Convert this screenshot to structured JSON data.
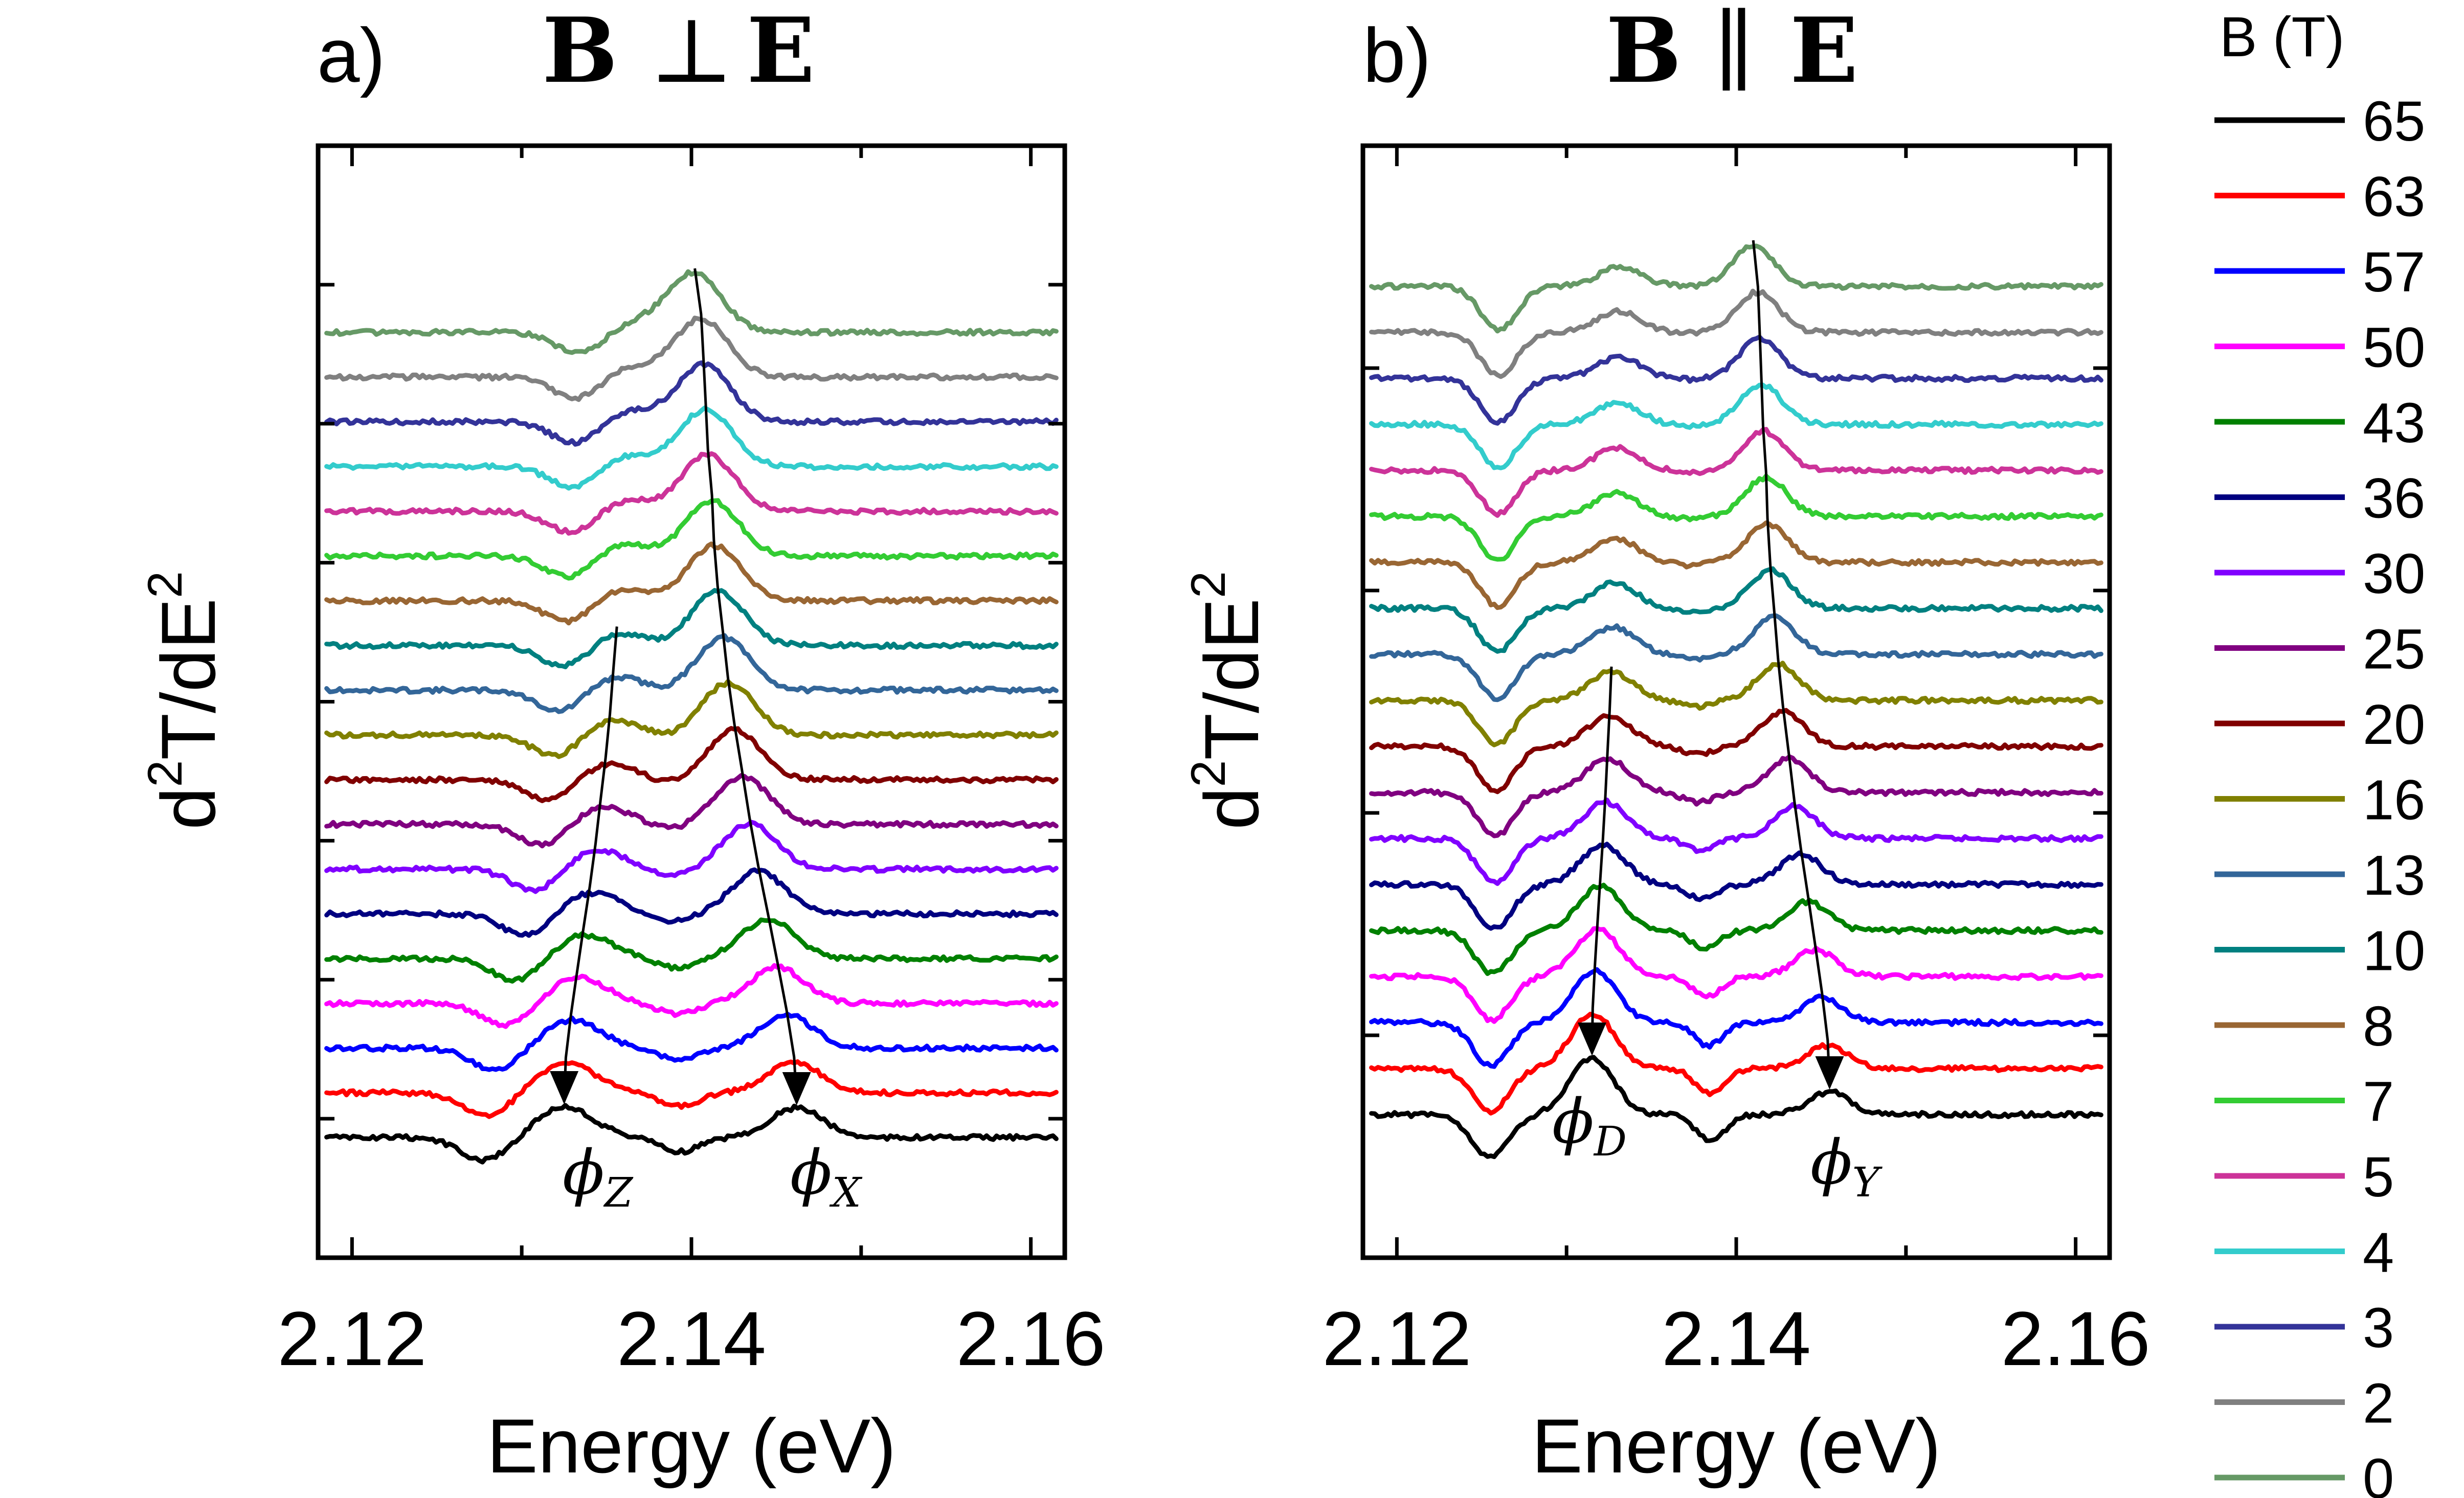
{
  "chart_data": {
    "type": "line",
    "ylabel_base": "d",
    "ylabel_sup1": "2",
    "ylabel_mid": "T/dE",
    "ylabel_sup2": "2",
    "xlabel": "Energy (eV)",
    "xlim": [
      2.118,
      2.162
    ],
    "xticks": [
      "2.12",
      "2.14",
      "2.16"
    ],
    "xtick_values": [
      2.12,
      2.14,
      2.16
    ],
    "legend": {
      "title": "B (T)",
      "fields_T": [
        65,
        63,
        57,
        50,
        43,
        36,
        30,
        25,
        20,
        16,
        13,
        10,
        8,
        7,
        5,
        4,
        3,
        2,
        0
      ],
      "labels": [
        "65",
        "63",
        "57",
        "50",
        "43",
        "36",
        "30",
        "25",
        "20",
        "16",
        "13",
        "10",
        "8",
        "7",
        "5",
        "4",
        "3",
        "2",
        "0"
      ],
      "colors": [
        "#000000",
        "#ff0000",
        "#0000ff",
        "#ff00ff",
        "#008000",
        "#000080",
        "#8000ff",
        "#800080",
        "#800000",
        "#808000",
        "#336699",
        "#008080",
        "#996633",
        "#33cc33",
        "#cc3399",
        "#33cccc",
        "#333399",
        "#808080",
        "#669966"
      ]
    },
    "panels": [
      {
        "id": "a",
        "label": "a)",
        "title_left": "B",
        "title_symbol": "⊥",
        "title_right": "E",
        "features": [
          {
            "symbol": "ϕ",
            "subscript": "Z",
            "energy_eV_at_0T": 2.1365,
            "energy_eV_at_65T": 2.1325,
            "sign": -1
          },
          {
            "symbol": "ϕ",
            "subscript": "X",
            "energy_eV_at_0T": 2.1402,
            "energy_eV_at_65T": 2.1462,
            "sign": 1
          }
        ],
        "background_dip": {
          "energy_eV_at_0T": 2.1335,
          "energy_eV_at_65T": 2.1278
        },
        "zero_field_peak_eV": 2.14
      },
      {
        "id": "b",
        "label": "b)",
        "title_left": "B",
        "title_symbol": "∥",
        "title_right": "E",
        "features": [
          {
            "symbol": "ϕ",
            "subscript": "D",
            "energy_eV_at_0T": 2.1332,
            "energy_eV_at_65T": 2.1315,
            "sign": -1
          },
          {
            "symbol": "ϕ",
            "subscript": "Y",
            "energy_eV_at_0T": 2.141,
            "energy_eV_at_65T": 2.1455,
            "sign": 1
          }
        ],
        "background_dip": {
          "energy_eV_at_0T": 2.126,
          "energy_eV_at_65T": 2.1255
        },
        "zero_field_peak_eV": 2.141
      }
    ]
  }
}
